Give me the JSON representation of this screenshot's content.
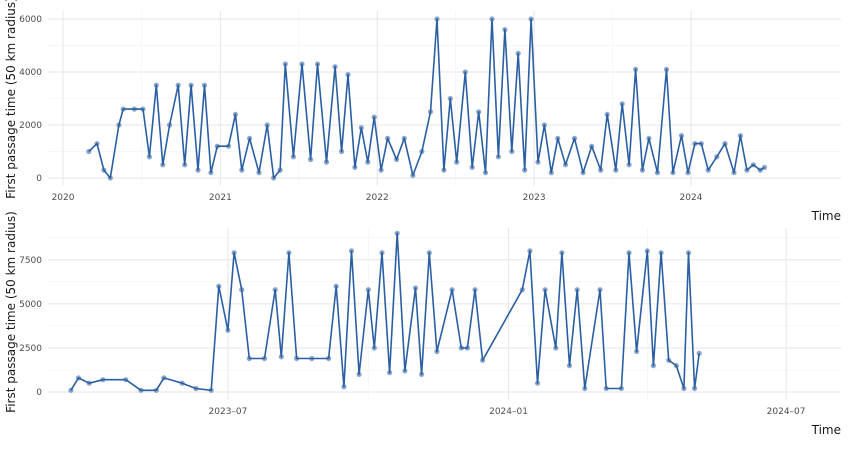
{
  "chart_data": [
    {
      "type": "line",
      "title": "",
      "xlabel": "Time",
      "ylabel": "First passage time (50 km radius)",
      "x_ticks": [
        "2020",
        "2021",
        "2022",
        "2023",
        "2024"
      ],
      "y_ticks": [
        0,
        2000,
        4000,
        6000
      ],
      "xlim": [
        "2019-11-27",
        "2024-12-15"
      ],
      "ylim": [
        -300,
        6300
      ],
      "grid": true,
      "legend": "none",
      "color": "#2b5fa3",
      "series": [
        {
          "points": [
            [
              "2020-03-01",
              1000
            ],
            [
              "2020-03-20",
              1300
            ],
            [
              "2020-04-05",
              300
            ],
            [
              "2020-04-20",
              0
            ],
            [
              "2020-05-10",
              2000
            ],
            [
              "2020-05-20",
              2600
            ],
            [
              "2020-06-15",
              2600
            ],
            [
              "2020-07-05",
              2600
            ],
            [
              "2020-07-20",
              800
            ],
            [
              "2020-08-05",
              3500
            ],
            [
              "2020-08-20",
              500
            ],
            [
              "2020-09-05",
              2000
            ],
            [
              "2020-09-25",
              3500
            ],
            [
              "2020-10-10",
              500
            ],
            [
              "2020-10-25",
              3500
            ],
            [
              "2020-11-10",
              300
            ],
            [
              "2020-11-25",
              3500
            ],
            [
              "2020-12-10",
              200
            ],
            [
              "2020-12-25",
              1200
            ],
            [
              "2021-01-20",
              1200
            ],
            [
              "2021-02-05",
              2400
            ],
            [
              "2021-02-20",
              300
            ],
            [
              "2021-03-10",
              1500
            ],
            [
              "2021-04-01",
              200
            ],
            [
              "2021-04-20",
              2000
            ],
            [
              "2021-05-05",
              0
            ],
            [
              "2021-05-20",
              300
            ],
            [
              "2021-06-01",
              4300
            ],
            [
              "2021-06-20",
              800
            ],
            [
              "2021-07-10",
              4300
            ],
            [
              "2021-07-30",
              700
            ],
            [
              "2021-08-15",
              4300
            ],
            [
              "2021-09-05",
              600
            ],
            [
              "2021-09-25",
              4200
            ],
            [
              "2021-10-10",
              1000
            ],
            [
              "2021-10-25",
              3900
            ],
            [
              "2021-11-10",
              400
            ],
            [
              "2021-11-25",
              1900
            ],
            [
              "2021-12-10",
              600
            ],
            [
              "2021-12-25",
              2300
            ],
            [
              "2022-01-10",
              300
            ],
            [
              "2022-01-25",
              1500
            ],
            [
              "2022-02-15",
              700
            ],
            [
              "2022-03-05",
              1500
            ],
            [
              "2022-03-25",
              100
            ],
            [
              "2022-04-15",
              1000
            ],
            [
              "2022-05-05",
              2500
            ],
            [
              "2022-05-20",
              6000
            ],
            [
              "2022-06-05",
              300
            ],
            [
              "2022-06-20",
              3000
            ],
            [
              "2022-07-05",
              600
            ],
            [
              "2022-07-25",
              4000
            ],
            [
              "2022-08-10",
              400
            ],
            [
              "2022-08-25",
              2500
            ],
            [
              "2022-09-10",
              200
            ],
            [
              "2022-09-25",
              6000
            ],
            [
              "2022-10-10",
              800
            ],
            [
              "2022-10-25",
              5600
            ],
            [
              "2022-11-10",
              1000
            ],
            [
              "2022-11-25",
              4700
            ],
            [
              "2022-12-10",
              300
            ],
            [
              "2022-12-25",
              6000
            ],
            [
              "2023-01-10",
              600
            ],
            [
              "2023-01-25",
              2000
            ],
            [
              "2023-02-10",
              200
            ],
            [
              "2023-02-25",
              1500
            ],
            [
              "2023-03-15",
              500
            ],
            [
              "2023-04-05",
              1500
            ],
            [
              "2023-04-25",
              200
            ],
            [
              "2023-05-15",
              1200
            ],
            [
              "2023-06-05",
              300
            ],
            [
              "2023-06-20",
              2400
            ],
            [
              "2023-07-10",
              300
            ],
            [
              "2023-07-25",
              2800
            ],
            [
              "2023-08-10",
              500
            ],
            [
              "2023-08-25",
              4100
            ],
            [
              "2023-09-10",
              300
            ],
            [
              "2023-09-25",
              1500
            ],
            [
              "2023-10-15",
              200
            ],
            [
              "2023-11-05",
              4100
            ],
            [
              "2023-11-20",
              200
            ],
            [
              "2023-12-10",
              1600
            ],
            [
              "2023-12-25",
              200
            ],
            [
              "2024-01-10",
              1300
            ],
            [
              "2024-01-25",
              1300
            ],
            [
              "2024-02-10",
              300
            ],
            [
              "2024-03-01",
              800
            ],
            [
              "2024-03-20",
              1300
            ],
            [
              "2024-04-10",
              200
            ],
            [
              "2024-04-25",
              1600
            ],
            [
              "2024-05-10",
              300
            ],
            [
              "2024-05-25",
              500
            ],
            [
              "2024-06-10",
              300
            ],
            [
              "2024-06-20",
              400
            ]
          ]
        }
      ]
    },
    {
      "type": "line",
      "title": "",
      "xlabel": "Time",
      "ylabel": "First passage time (50 km radius)",
      "x_ticks": [
        "2023–07",
        "2024–01",
        "2024–07"
      ],
      "y_ticks": [
        0,
        2500,
        5000,
        7500
      ],
      "xlim": [
        "2023-03-05",
        "2024-08-06"
      ],
      "ylim": [
        -450,
        9300
      ],
      "grid": true,
      "legend": "none",
      "color": "#2b5fa3",
      "series": [
        {
          "points": [
            [
              "2023-03-20",
              100
            ],
            [
              "2023-03-25",
              800
            ],
            [
              "2023-04-01",
              500
            ],
            [
              "2023-04-10",
              700
            ],
            [
              "2023-04-25",
              700
            ],
            [
              "2023-05-05",
              100
            ],
            [
              "2023-05-15",
              100
            ],
            [
              "2023-05-20",
              800
            ],
            [
              "2023-06-01",
              500
            ],
            [
              "2023-06-10",
              200
            ],
            [
              "2023-06-20",
              100
            ],
            [
              "2023-06-25",
              6000
            ],
            [
              "2023-07-01",
              3500
            ],
            [
              "2023-07-05",
              7900
            ],
            [
              "2023-07-10",
              5800
            ],
            [
              "2023-07-15",
              1900
            ],
            [
              "2023-07-25",
              1900
            ],
            [
              "2023-08-01",
              5800
            ],
            [
              "2023-08-05",
              2000
            ],
            [
              "2023-08-10",
              7900
            ],
            [
              "2023-08-15",
              1900
            ],
            [
              "2023-08-25",
              1900
            ],
            [
              "2023-09-05",
              1900
            ],
            [
              "2023-09-10",
              6000
            ],
            [
              "2023-09-15",
              300
            ],
            [
              "2023-09-20",
              8000
            ],
            [
              "2023-09-25",
              1000
            ],
            [
              "2023-10-01",
              5800
            ],
            [
              "2023-10-05",
              2500
            ],
            [
              "2023-10-10",
              7900
            ],
            [
              "2023-10-15",
              1100
            ],
            [
              "2023-10-20",
              9000
            ],
            [
              "2023-10-25",
              1200
            ],
            [
              "2023-11-01",
              5900
            ],
            [
              "2023-11-05",
              1000
            ],
            [
              "2023-11-10",
              7900
            ],
            [
              "2023-11-15",
              2300
            ],
            [
              "2023-11-25",
              5800
            ],
            [
              "2023-12-01",
              2500
            ],
            [
              "2023-12-05",
              2500
            ],
            [
              "2023-12-10",
              5800
            ],
            [
              "2023-12-15",
              1800
            ],
            [
              "2024-01-10",
              5800
            ],
            [
              "2024-01-15",
              8000
            ],
            [
              "2024-01-20",
              500
            ],
            [
              "2024-01-25",
              5800
            ],
            [
              "2024-02-01",
              2500
            ],
            [
              "2024-02-05",
              7900
            ],
            [
              "2024-02-10",
              1500
            ],
            [
              "2024-02-15",
              5800
            ],
            [
              "2024-02-20",
              200
            ],
            [
              "2024-03-01",
              5800
            ],
            [
              "2024-03-05",
              200
            ],
            [
              "2024-03-15",
              200
            ],
            [
              "2024-03-20",
              7900
            ],
            [
              "2024-03-25",
              2300
            ],
            [
              "2024-04-01",
              8000
            ],
            [
              "2024-04-05",
              1500
            ],
            [
              "2024-04-10",
              7900
            ],
            [
              "2024-04-15",
              1800
            ],
            [
              "2024-04-20",
              1500
            ],
            [
              "2024-04-25",
              200
            ],
            [
              "2024-04-28",
              7900
            ],
            [
              "2024-05-02",
              200
            ],
            [
              "2024-05-05",
              2200
            ]
          ]
        }
      ]
    }
  ]
}
